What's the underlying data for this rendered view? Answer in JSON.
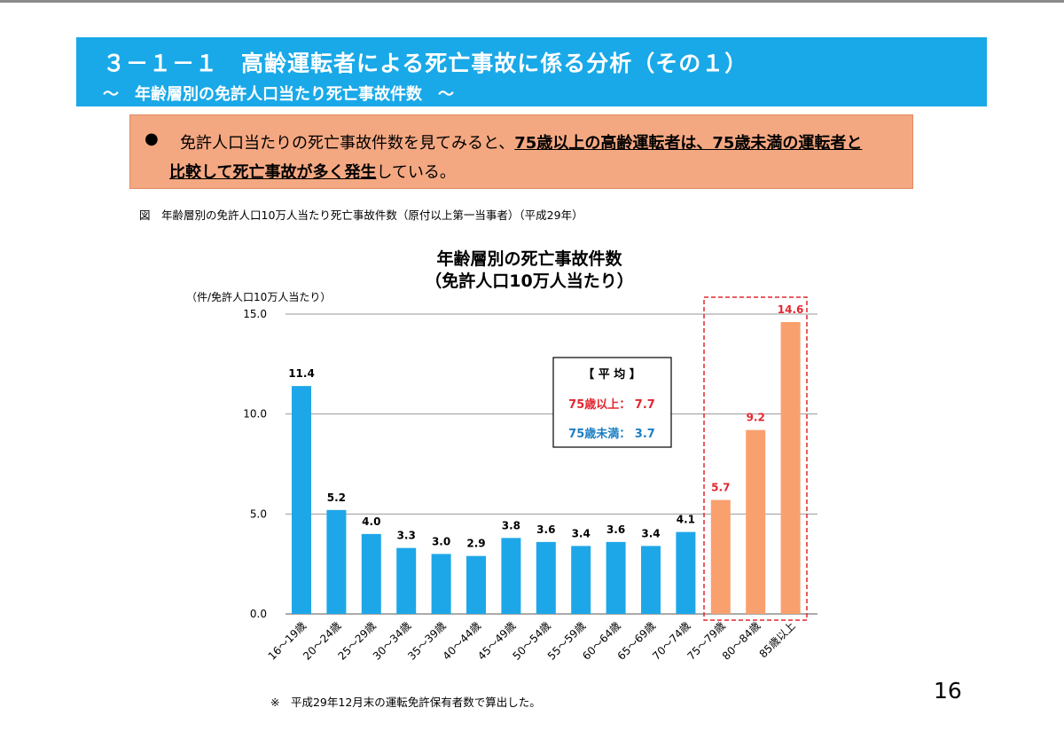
{
  "header": {
    "title": "３－１－１　高齢運転者による死亡事故に係る分析（その１）",
    "subtitle": "～　年齢層別の免許人口当たり死亡事故件数　～"
  },
  "note": {
    "bullet": "●",
    "part1": "免許人口当たりの死亡事故件数を見てみると、",
    "part2": "75歳以上の高齢運転者は、75歳未満の運転者と",
    "part3": "比較して死亡事故が多く発生",
    "part4": "している。"
  },
  "caption": "図　年齢層別の免許人口10万人当たり死亡事故件数（原付以上第一当事者）（平成29年）",
  "footnote": "※　平成29年12月末の運転免許保有者数で算出した。",
  "page_number": "16",
  "average_box": {
    "title": "【 平 均 】",
    "over75": "75歳以上： 7.7",
    "under75": "75歳未満： 3.7"
  },
  "colors": {
    "under75": "#1ea7e8",
    "over75": "#f8a06e",
    "highlight_label": "#e3262f",
    "under75_label": "#1a7fc4"
  },
  "chart_data": {
    "type": "bar",
    "title": "年齢層別の死亡事故件数",
    "subtitle": "（免許人口10万人当たり）",
    "ylabel": "（件/免許人口10万人当たり）",
    "ylim": [
      0,
      15
    ],
    "yticks": [
      "0.0",
      "5.0",
      "10.0",
      "15.0"
    ],
    "grid": true,
    "categories": [
      "16～19歳",
      "20～24歳",
      "25～29歳",
      "30～34歳",
      "35～39歳",
      "40～44歳",
      "45～49歳",
      "50～54歳",
      "55～59歳",
      "60～64歳",
      "65～69歳",
      "70～74歳",
      "75～79歳",
      "80～84歳",
      "85歳以上"
    ],
    "values": [
      11.4,
      5.2,
      4.0,
      3.3,
      3.0,
      2.9,
      3.8,
      3.6,
      3.4,
      3.6,
      3.4,
      4.1,
      5.7,
      9.2,
      14.6
    ],
    "value_labels": [
      "11.4",
      "5.2",
      "4.0",
      "3.3",
      "3.0",
      "2.9",
      "3.8",
      "3.6",
      "3.4",
      "3.6",
      "3.4",
      "4.1",
      "5.7",
      "9.2",
      "14.6"
    ],
    "highlight_from_index": 12
  }
}
